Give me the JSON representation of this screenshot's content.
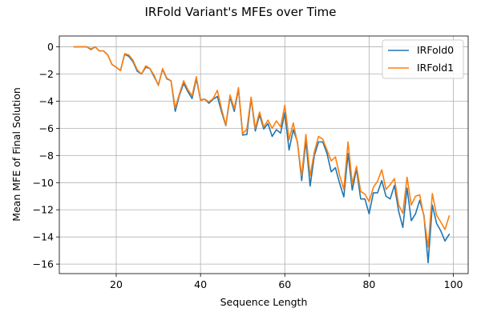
{
  "chart_data": {
    "type": "line",
    "title": "IRFold Variant's MFEs over Time",
    "xlabel": "Sequence Length",
    "ylabel": "Mean MFE of Final Solution",
    "xlim": [
      6.5,
      103.5
    ],
    "ylim": [
      -16.7,
      0.8
    ],
    "xticks": [
      20,
      40,
      60,
      80,
      100
    ],
    "yticks": [
      0,
      -2,
      -4,
      -6,
      -8,
      -10,
      -12,
      -14,
      -16
    ],
    "grid": true,
    "legend_position": "top-right",
    "x": [
      10,
      11,
      12,
      13,
      14,
      15,
      16,
      17,
      18,
      19,
      20,
      21,
      22,
      23,
      24,
      25,
      26,
      27,
      28,
      29,
      30,
      31,
      32,
      33,
      34,
      35,
      36,
      37,
      38,
      39,
      40,
      41,
      42,
      43,
      44,
      45,
      46,
      47,
      48,
      49,
      50,
      51,
      52,
      53,
      54,
      55,
      56,
      57,
      58,
      59,
      60,
      61,
      62,
      63,
      64,
      65,
      66,
      67,
      68,
      69,
      70,
      71,
      72,
      73,
      74,
      75,
      76,
      77,
      78,
      79,
      80,
      81,
      82,
      83,
      84,
      85,
      86,
      87,
      88,
      89,
      90,
      91,
      92,
      93,
      94,
      95,
      96,
      97,
      98,
      99
    ],
    "series": [
      {
        "name": "IRFold0",
        "color": "#1f77b4",
        "values": [
          0,
          0,
          0,
          0,
          -0.2,
          0,
          -0.3,
          -0.3,
          -0.6,
          -1.3,
          -1.5,
          -1.75,
          -0.55,
          -0.7,
          -1.1,
          -1.8,
          -2.0,
          -1.5,
          -1.6,
          -2.2,
          -2.8,
          -1.65,
          -2.35,
          -2.5,
          -4.75,
          -3.55,
          -2.7,
          -3.3,
          -3.8,
          -2.35,
          -3.9,
          -3.85,
          -4.15,
          -3.85,
          -3.65,
          -4.8,
          -5.8,
          -3.7,
          -4.75,
          -3.1,
          -6.5,
          -6.45,
          -3.8,
          -6.2,
          -5.0,
          -6.05,
          -5.65,
          -6.6,
          -6.1,
          -6.35,
          -4.85,
          -7.6,
          -6.1,
          -7.0,
          -9.85,
          -6.9,
          -10.25,
          -8.0,
          -7.0,
          -7.0,
          -7.85,
          -9.2,
          -8.9,
          -10.05,
          -11.05,
          -7.85,
          -10.55,
          -9.0,
          -11.2,
          -11.2,
          -12.3,
          -10.75,
          -10.75,
          -9.85,
          -11.0,
          -11.2,
          -10.2,
          -12.1,
          -13.3,
          -10.4,
          -12.8,
          -12.3,
          -11.3,
          -12.4,
          -15.9,
          -11.65,
          -13.0,
          -13.55,
          -14.3,
          -13.8
        ]
      },
      {
        "name": "IRFold1",
        "color": "#ff7f0e",
        "values": [
          0,
          0,
          0,
          0,
          -0.15,
          0,
          -0.3,
          -0.3,
          -0.6,
          -1.3,
          -1.5,
          -1.75,
          -0.5,
          -0.6,
          -1.0,
          -1.7,
          -2.0,
          -1.4,
          -1.6,
          -2.1,
          -2.85,
          -1.6,
          -2.3,
          -2.5,
          -4.5,
          -3.45,
          -2.5,
          -3.15,
          -3.6,
          -2.2,
          -3.95,
          -3.85,
          -4.05,
          -3.8,
          -3.2,
          -4.6,
          -5.75,
          -3.55,
          -4.55,
          -3.0,
          -6.4,
          -6.05,
          -3.7,
          -6.0,
          -4.8,
          -5.9,
          -5.4,
          -6.0,
          -5.45,
          -5.9,
          -4.3,
          -6.85,
          -5.6,
          -7.1,
          -9.5,
          -6.45,
          -9.5,
          -7.75,
          -6.6,
          -6.8,
          -7.6,
          -8.4,
          -8.1,
          -9.45,
          -10.5,
          -7.0,
          -10.1,
          -8.8,
          -10.65,
          -10.85,
          -11.4,
          -10.35,
          -9.9,
          -9.05,
          -10.5,
          -10.15,
          -9.7,
          -11.65,
          -12.25,
          -9.6,
          -11.65,
          -11.0,
          -10.9,
          -12.5,
          -14.75,
          -10.8,
          -12.4,
          -12.9,
          -13.45,
          -12.45
        ]
      }
    ]
  }
}
